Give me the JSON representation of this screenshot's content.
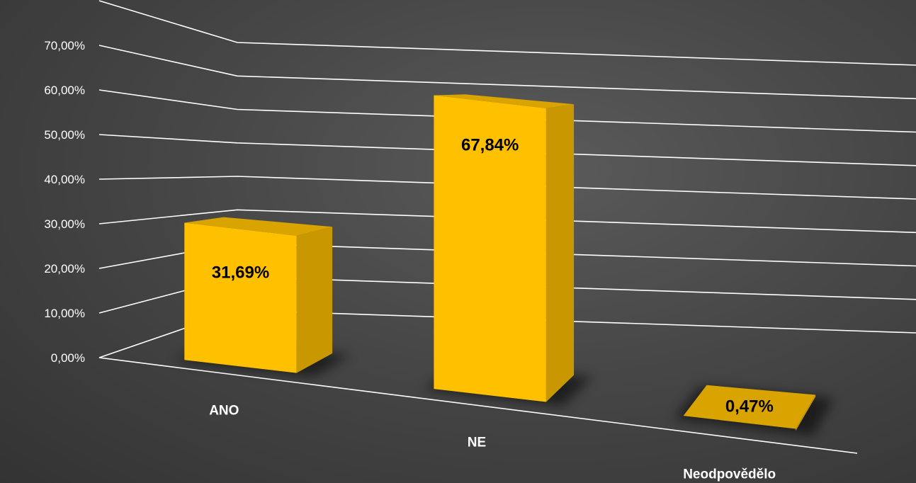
{
  "chart_data": {
    "type": "bar",
    "categories": [
      "ANO",
      "NE",
      "Neodpovědělo"
    ],
    "values": [
      31.69,
      67.84,
      0.47
    ],
    "data_labels": [
      "31,69%",
      "67,84%",
      "0,47%"
    ],
    "y_ticks": [
      "0,00%",
      "10,00%",
      "20,00%",
      "30,00%",
      "40,00%",
      "50,00%",
      "60,00%",
      "70,00%"
    ],
    "ylim": [
      0,
      70
    ],
    "title": "",
    "xlabel": "",
    "ylabel": "",
    "grid": true,
    "legend": "none",
    "bar_color": "#ffc000",
    "bar_side_color": "#c99700",
    "bar_top_color": "#d9a400"
  }
}
